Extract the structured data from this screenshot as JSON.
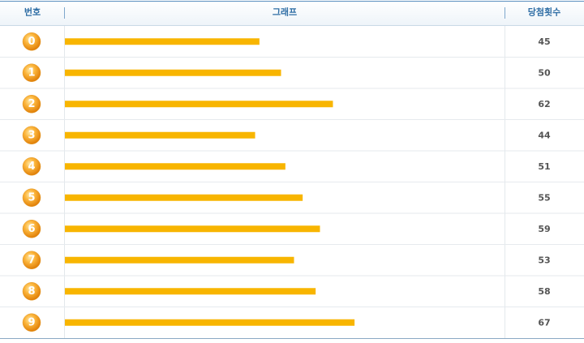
{
  "chart_data": {
    "type": "bar",
    "orientation": "horizontal",
    "columns": [
      "번호",
      "그래프",
      "당첨횟수"
    ],
    "categories": [
      "0",
      "1",
      "2",
      "3",
      "4",
      "5",
      "6",
      "7",
      "8",
      "9"
    ],
    "values": [
      45,
      50,
      62,
      44,
      51,
      55,
      59,
      53,
      58,
      67
    ],
    "color": "#f8b500"
  }
}
